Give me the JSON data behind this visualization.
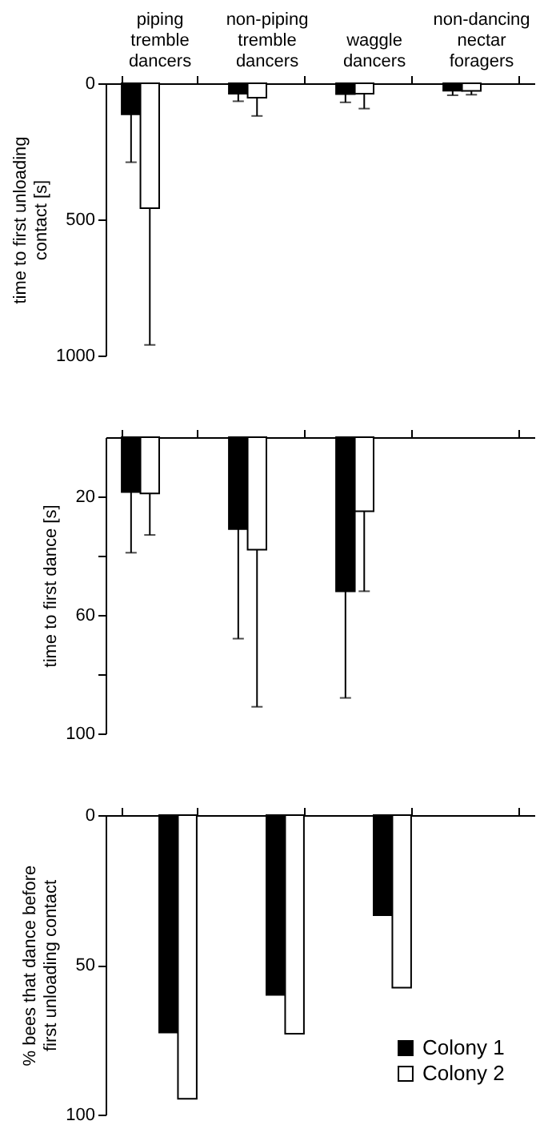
{
  "chart_data": [
    {
      "type": "bar",
      "categories": [
        "piping tremble dancers",
        "non-piping tremble dancers",
        "waggle dancers",
        "non-dancing nectar foragers"
      ],
      "ylabel": "time to first unloading contact [s]",
      "ylim": [
        1000,
        0
      ],
      "yticks": [
        0,
        500,
        1000
      ],
      "series": [
        {
          "color": "#000000",
          "values": [
            114,
            38,
            40,
            27
          ],
          "errors": [
            [
              114,
              290
            ],
            [
              38,
              66
            ],
            [
              40,
              70
            ],
            [
              27,
              44
            ]
          ]
        },
        {
          "color": "#ffffff",
          "values": [
            459,
            53,
            38,
            28
          ],
          "errors": [
            [
              459,
              961
            ],
            [
              53,
              120
            ],
            [
              38,
              93
            ],
            [
              28,
              42
            ]
          ]
        }
      ]
    },
    {
      "type": "bar",
      "categories": [
        null,
        null,
        null,
        null
      ],
      "ylabel": "time to first dance [s]",
      "ylim": [
        100,
        0
      ],
      "yticks": [
        20,
        {
          "value": 40,
          "label": null
        },
        60,
        {
          "value": 80,
          "label": null
        },
        100
      ],
      "tick_labels": "y",
      "series": [
        {
          "color": "#000000",
          "values": [
            18.5,
            31,
            52,
            null
          ],
          "errors": [
            [
              18.5,
              39
            ],
            [
              31,
              68
            ],
            [
              52,
              88
            ],
            null
          ]
        },
        {
          "color": "#ffffff",
          "values": [
            19,
            38,
            25,
            null
          ],
          "errors": [
            [
              19,
              33
            ],
            [
              38,
              91
            ],
            [
              25,
              52
            ],
            null
          ]
        }
      ]
    },
    {
      "type": "bar",
      "categories": [
        null,
        null,
        null,
        null
      ],
      "ylabel": "% bees that dance before first unloading contact",
      "ylim": [
        100,
        0
      ],
      "yticks": [
        0,
        50,
        100
      ],
      "tick_labels": "y",
      "legend": "bottom right",
      "series": [
        {
          "name": "Colony 1",
          "color": "#000000",
          "values": [
            72.6,
            60,
            33.4,
            null
          ]
        },
        {
          "name": "Colony 2",
          "color": "#ffffff",
          "values": [
            94.7,
            73,
            57.6,
            null
          ]
        }
      ]
    }
  ]
}
